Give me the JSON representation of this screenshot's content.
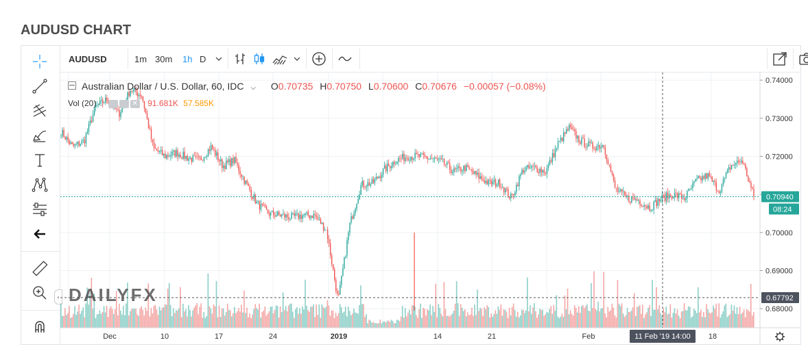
{
  "page": {
    "title": "AUDUSD CHART"
  },
  "toolbar": {
    "symbol": "AUDUSD",
    "intervals": [
      "1m",
      "30m",
      "1h",
      "D"
    ],
    "active_interval": "1h"
  },
  "legend": {
    "instrument": "Australian Dollar / U.S. Dollar, 60, IDC",
    "o_label": "O",
    "o_value": "0.70735",
    "h_label": "H",
    "h_value": "0.70750",
    "l_label": "L",
    "l_value": "0.70600",
    "c_label": "C",
    "c_value": "0.70676",
    "change": "−0.00057 (−0.08%)",
    "vol_label": "Vol (20)",
    "vol_value": "91.681K",
    "vol_ma_value": "57.585K"
  },
  "watermark": {
    "text": "DAILYFX"
  },
  "price_axis": {
    "ticks": [
      "0.74000",
      "0.73000",
      "0.72000",
      "0.71000",
      "0.70000",
      "0.69000",
      "0.68000"
    ],
    "last_price": "0.70940",
    "countdown": "08:24",
    "volume_ma_label": "0.67792"
  },
  "time_axis": {
    "labels": [
      "Dec",
      "10",
      "17",
      "24",
      "2019",
      "14",
      "21",
      "Feb",
      "18"
    ],
    "crosshair_label": "11 Feb '19   14:00"
  },
  "colors": {
    "up": "#26a69a",
    "down": "#ef5350",
    "vol_up": "#8ccfc7",
    "vol_down": "#f3a7a5",
    "accent": "#2196f3",
    "last_price_bg": "#26a69a",
    "crosshair_bg": "#4c525e"
  },
  "chart_data": {
    "type": "candlestick",
    "title": "Australian Dollar / U.S. Dollar, 60, IDC",
    "xlabel": "",
    "ylabel": "",
    "ylim": [
      0.675,
      0.742
    ],
    "x_ticks": [
      "Dec",
      "10",
      "17",
      "24",
      "2019",
      "14",
      "21",
      "Feb",
      "18"
    ],
    "y_ticks": [
      0.74,
      0.73,
      0.72,
      0.71,
      0.7,
      0.69,
      0.68
    ],
    "grid": true,
    "approx_close_path": [
      {
        "x": "Nov 28",
        "y": 0.7265
      },
      {
        "x": "Nov 29",
        "y": 0.7225
      },
      {
        "x": "Nov 30",
        "y": 0.724
      },
      {
        "x": "Dec 3",
        "y": 0.733
      },
      {
        "x": "Dec 4",
        "y": 0.735
      },
      {
        "x": "Dec 5",
        "y": 0.731
      },
      {
        "x": "Dec 6",
        "y": 0.7375
      },
      {
        "x": "Dec 7",
        "y": 0.736
      },
      {
        "x": "Dec 10",
        "y": 0.722
      },
      {
        "x": "Dec 11",
        "y": 0.72
      },
      {
        "x": "Dec 12",
        "y": 0.721
      },
      {
        "x": "Dec 13",
        "y": 0.7195
      },
      {
        "x": "Dec 14",
        "y": 0.719
      },
      {
        "x": "Dec 17",
        "y": 0.7225
      },
      {
        "x": "Dec 18",
        "y": 0.7175
      },
      {
        "x": "Dec 19",
        "y": 0.719
      },
      {
        "x": "Dec 20",
        "y": 0.713
      },
      {
        "x": "Dec 21",
        "y": 0.7075
      },
      {
        "x": "Dec 24",
        "y": 0.705
      },
      {
        "x": "Dec 26",
        "y": 0.7045
      },
      {
        "x": "Dec 27",
        "y": 0.704
      },
      {
        "x": "Dec 28",
        "y": 0.7045
      },
      {
        "x": "Dec 31",
        "y": 0.7045
      },
      {
        "x": "Jan 2",
        "y": 0.7005
      },
      {
        "x": "Jan 3",
        "y": 0.682
      },
      {
        "x": "Jan 4",
        "y": 0.702
      },
      {
        "x": "Jan 7",
        "y": 0.7125
      },
      {
        "x": "Jan 8",
        "y": 0.713
      },
      {
        "x": "Jan 9",
        "y": 0.7165
      },
      {
        "x": "Jan 10",
        "y": 0.719
      },
      {
        "x": "Jan 11",
        "y": 0.72
      },
      {
        "x": "Jan 14",
        "y": 0.72
      },
      {
        "x": "Jan 15",
        "y": 0.7195
      },
      {
        "x": "Jan 16",
        "y": 0.7185
      },
      {
        "x": "Jan 17",
        "y": 0.716
      },
      {
        "x": "Jan 18",
        "y": 0.717
      },
      {
        "x": "Jan 21",
        "y": 0.715
      },
      {
        "x": "Jan 22",
        "y": 0.713
      },
      {
        "x": "Jan 23",
        "y": 0.713
      },
      {
        "x": "Jan 24",
        "y": 0.709
      },
      {
        "x": "Jan 25",
        "y": 0.7165
      },
      {
        "x": "Jan 28",
        "y": 0.717
      },
      {
        "x": "Jan 29",
        "y": 0.716
      },
      {
        "x": "Jan 30",
        "y": 0.723
      },
      {
        "x": "Jan 31",
        "y": 0.7275
      },
      {
        "x": "Feb 1",
        "y": 0.724
      },
      {
        "x": "Feb 4",
        "y": 0.7225
      },
      {
        "x": "Feb 5",
        "y": 0.723
      },
      {
        "x": "Feb 6",
        "y": 0.7115
      },
      {
        "x": "Feb 7",
        "y": 0.709
      },
      {
        "x": "Feb 8",
        "y": 0.7085
      },
      {
        "x": "Feb 11",
        "y": 0.7065
      },
      {
        "x": "Feb 12",
        "y": 0.709
      },
      {
        "x": "Feb 13",
        "y": 0.71
      },
      {
        "x": "Feb 14",
        "y": 0.709
      },
      {
        "x": "Feb 15",
        "y": 0.7135
      },
      {
        "x": "Feb 18",
        "y": 0.715
      },
      {
        "x": "Feb 19",
        "y": 0.711
      },
      {
        "x": "Feb 20",
        "y": 0.7175
      },
      {
        "x": "Feb 21",
        "y": 0.719
      },
      {
        "x": "Feb 22",
        "y": 0.7094
      }
    ],
    "last_close": 0.7094,
    "volume": {
      "label": "Vol (20)",
      "last": "91.681K",
      "ma": "57.585K"
    }
  }
}
